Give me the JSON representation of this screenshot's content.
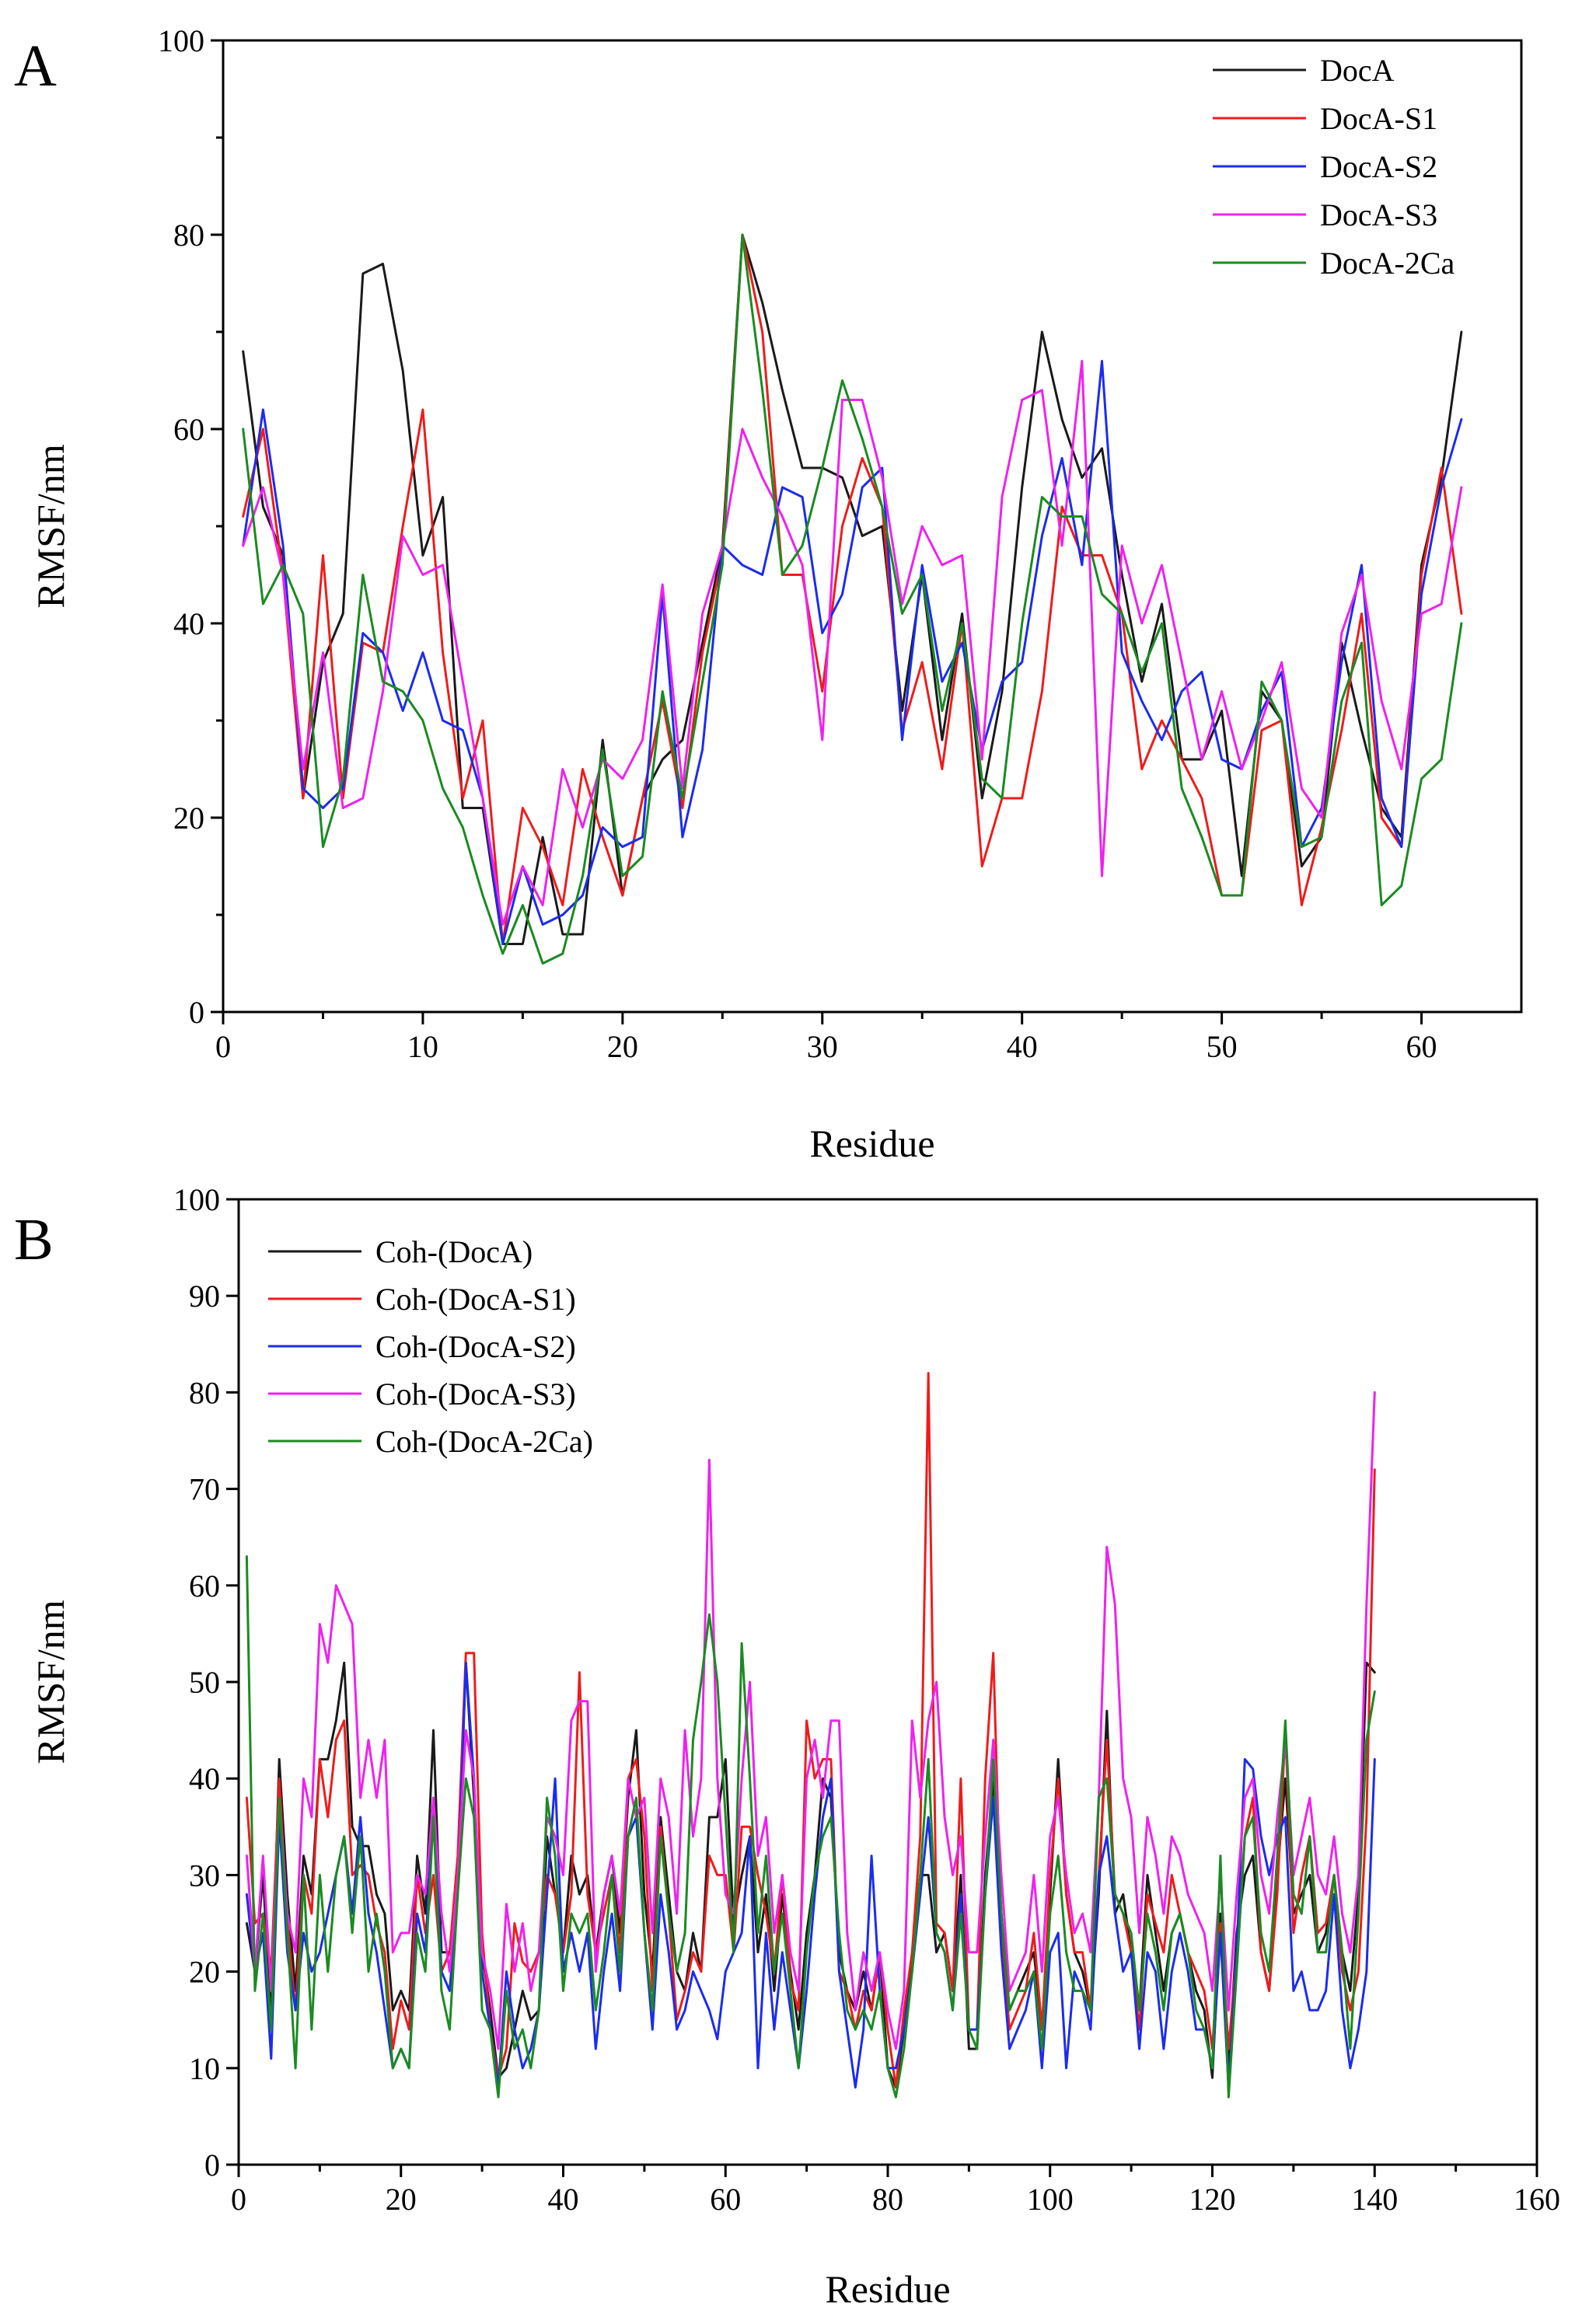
{
  "chart_data": [
    {
      "type": "line",
      "panel_label": "A",
      "xlabel": "Residue",
      "ylabel": "RMSF/nm",
      "xlim": [
        0,
        65
      ],
      "ylim": [
        0,
        100
      ],
      "xticks": [
        0,
        10,
        20,
        30,
        40,
        50,
        60
      ],
      "yticks": [
        0,
        20,
        40,
        60,
        80,
        100
      ],
      "legend_position": "top-right",
      "x": [
        1,
        2,
        3,
        4,
        5,
        6,
        7,
        8,
        9,
        10,
        11,
        12,
        13,
        14,
        15,
        16,
        17,
        18,
        19,
        20,
        21,
        22,
        23,
        24,
        25,
        26,
        27,
        28,
        29,
        30,
        31,
        32,
        33,
        34,
        35,
        36,
        37,
        38,
        39,
        40,
        41,
        42,
        43,
        44,
        45,
        46,
        47,
        48,
        49,
        50,
        51,
        52,
        53,
        54,
        55,
        56,
        57,
        58,
        59,
        60,
        61,
        62
      ],
      "series": [
        {
          "name": "DocA",
          "color": "#1a1a1a",
          "values": [
            68,
            52,
            47,
            22,
            36,
            41,
            76,
            77,
            66,
            47,
            53,
            21,
            21,
            7,
            7,
            18,
            8,
            8,
            28,
            12,
            22,
            26,
            28,
            38,
            48,
            80,
            73,
            64,
            56,
            56,
            55,
            49,
            50,
            31,
            45,
            28,
            41,
            22,
            33,
            54,
            70,
            61,
            55,
            58,
            45,
            34,
            42,
            26,
            26,
            31,
            14,
            33,
            30,
            15,
            18,
            38,
            29,
            21,
            18,
            46,
            55,
            70
          ]
        },
        {
          "name": "DocA-S1",
          "color": "#ee1c1c",
          "values": [
            51,
            60,
            45,
            22,
            47,
            22,
            38,
            37,
            50,
            62,
            37,
            22,
            30,
            7,
            21,
            17,
            11,
            25,
            18,
            12,
            22,
            32,
            21,
            37,
            47,
            80,
            70,
            45,
            45,
            33,
            50,
            57,
            52,
            29,
            36,
            25,
            40,
            15,
            22,
            22,
            33,
            52,
            47,
            47,
            41,
            25,
            30,
            26,
            22,
            12,
            12,
            29,
            30,
            11,
            19,
            29,
            41,
            20,
            17,
            45,
            56,
            41
          ]
        },
        {
          "name": "DocA-S2",
          "color": "#1c2cee",
          "values": [
            48,
            62,
            48,
            23,
            21,
            23,
            39,
            37,
            31,
            37,
            30,
            29,
            22,
            7,
            15,
            9,
            10,
            12,
            19,
            17,
            18,
            43,
            18,
            27,
            48,
            46,
            45,
            54,
            53,
            39,
            43,
            54,
            56,
            28,
            46,
            34,
            38,
            27,
            34,
            36,
            49,
            57,
            46,
            67,
            37,
            32,
            28,
            33,
            35,
            26,
            25,
            31,
            35,
            17,
            21,
            36,
            46,
            22,
            17,
            43,
            54,
            61
          ]
        },
        {
          "name": "DocA-S3",
          "color": "#ee22ee",
          "values": [
            48,
            54,
            45,
            25,
            37,
            21,
            22,
            33,
            49,
            45,
            46,
            34,
            22,
            9,
            15,
            11,
            25,
            19,
            26,
            24,
            28,
            44,
            23,
            41,
            48,
            60,
            55,
            51,
            46,
            28,
            63,
            63,
            55,
            42,
            50,
            46,
            47,
            26,
            53,
            63,
            64,
            48,
            67,
            14,
            48,
            40,
            46,
            36,
            26,
            33,
            25,
            30,
            36,
            23,
            20,
            39,
            45,
            32,
            25,
            41,
            42,
            54
          ]
        },
        {
          "name": "DocA-2Ca",
          "color": "#1b8a22",
          "values": [
            60,
            42,
            46,
            41,
            17,
            24,
            45,
            34,
            33,
            30,
            23,
            19,
            12,
            6,
            11,
            5,
            6,
            14,
            27,
            14,
            16,
            33,
            22,
            34,
            46,
            80,
            64,
            45,
            48,
            56,
            65,
            59,
            52,
            41,
            45,
            31,
            40,
            24,
            22,
            40,
            53,
            51,
            51,
            43,
            41,
            35,
            40,
            23,
            18,
            12,
            12,
            34,
            30,
            17,
            18,
            32,
            38,
            11,
            13,
            24,
            26,
            40
          ]
        }
      ]
    },
    {
      "type": "line",
      "panel_label": "B",
      "xlabel": "Residue",
      "ylabel": "RMSF/nm",
      "xlim": [
        0,
        160
      ],
      "ylim": [
        0,
        100
      ],
      "xticks": [
        0,
        20,
        40,
        60,
        80,
        100,
        120,
        140,
        160
      ],
      "yticks": [
        0,
        10,
        20,
        30,
        40,
        50,
        60,
        70,
        80,
        90,
        100
      ],
      "legend_position": "top-left",
      "x_start": 1,
      "series": [
        {
          "name": "Coh-(DocA)",
          "color": "#1a1a1a",
          "values": [
            25,
            20,
            30,
            15,
            42,
            28,
            18,
            32,
            28,
            42,
            42,
            46,
            52,
            35,
            33,
            33,
            28,
            26,
            16,
            18,
            16,
            32,
            26,
            45,
            22,
            22,
            30,
            52,
            38,
            22,
            16,
            9,
            10,
            14,
            18,
            15,
            16,
            34,
            28,
            22,
            32,
            28,
            30,
            22,
            28,
            32,
            24,
            38,
            45,
            28,
            20,
            36,
            28,
            20,
            18,
            24,
            20,
            36,
            36,
            42,
            25,
            30,
            34,
            22,
            28,
            18,
            28,
            20,
            14,
            24,
            30,
            40,
            38,
            22,
            18,
            16,
            20,
            16,
            22,
            10,
            8,
            14,
            22,
            30,
            30,
            22,
            24,
            18,
            30,
            12,
            12,
            30,
            40,
            26,
            16,
            18,
            20,
            22,
            14,
            28,
            42,
            28,
            22,
            20,
            16,
            28,
            47,
            26,
            28,
            22,
            16,
            30,
            24,
            18,
            24,
            26,
            22,
            18,
            16,
            9,
            26,
            10,
            24,
            30,
            32,
            22,
            18,
            30,
            40,
            26,
            28,
            30,
            22,
            24,
            30,
            22,
            18,
            28,
            52,
            51
          ]
        },
        {
          "name": "Coh-(DocA-S1)",
          "color": "#ee1c1c",
          "values": [
            38,
            25,
            26,
            20,
            40,
            25,
            16,
            30,
            26,
            42,
            36,
            44,
            46,
            30,
            31,
            30,
            25,
            22,
            12,
            17,
            14,
            30,
            24,
            30,
            20,
            22,
            32,
            53,
            53,
            24,
            14,
            9,
            12,
            25,
            21,
            20,
            22,
            30,
            28,
            22,
            28,
            51,
            28,
            22,
            26,
            30,
            22,
            40,
            42,
            34,
            18,
            35,
            26,
            15,
            18,
            22,
            20,
            32,
            30,
            30,
            22,
            35,
            35,
            30,
            26,
            20,
            30,
            19,
            16,
            46,
            40,
            42,
            42,
            20,
            18,
            14,
            18,
            16,
            22,
            14,
            8,
            16,
            22,
            34,
            82,
            25,
            24,
            18,
            40,
            14,
            14,
            40,
            53,
            24,
            14,
            16,
            18,
            24,
            14,
            30,
            40,
            28,
            22,
            22,
            16,
            30,
            44,
            28,
            26,
            22,
            14,
            28,
            25,
            22,
            30,
            26,
            22,
            20,
            18,
            12,
            25,
            12,
            22,
            34,
            38,
            22,
            18,
            28,
            45,
            24,
            30,
            34,
            24,
            25,
            30,
            20,
            16,
            20,
            36,
            72
          ]
        },
        {
          "name": "Coh-(DocA-S2)",
          "color": "#1c2cee",
          "values": [
            28,
            20,
            24,
            11,
            36,
            22,
            16,
            24,
            20,
            22,
            26,
            30,
            34,
            26,
            36,
            26,
            22,
            16,
            10,
            12,
            10,
            26,
            22,
            38,
            20,
            18,
            28,
            52,
            40,
            20,
            14,
            8,
            20,
            14,
            10,
            12,
            16,
            28,
            40,
            20,
            24,
            20,
            24,
            12,
            20,
            26,
            18,
            34,
            36,
            24,
            14,
            28,
            22,
            14,
            16,
            20,
            18,
            16,
            13,
            20,
            22,
            24,
            34,
            10,
            24,
            14,
            22,
            16,
            10,
            18,
            28,
            36,
            40,
            20,
            14,
            8,
            14,
            32,
            18,
            10,
            10,
            14,
            20,
            28,
            36,
            24,
            22,
            16,
            28,
            14,
            14,
            28,
            38,
            22,
            12,
            14,
            16,
            20,
            10,
            22,
            24,
            10,
            20,
            18,
            14,
            30,
            34,
            26,
            20,
            22,
            12,
            22,
            20,
            12,
            20,
            24,
            20,
            14,
            14,
            10,
            24,
            8,
            22,
            42,
            41,
            34,
            30,
            34,
            36,
            18,
            20,
            16,
            16,
            18,
            28,
            16,
            10,
            14,
            20,
            42
          ]
        },
        {
          "name": "Coh-(DocA-S3)",
          "color": "#ee22ee",
          "values": [
            32,
            20,
            32,
            18,
            38,
            26,
            22,
            40,
            36,
            56,
            52,
            60,
            58,
            56,
            38,
            44,
            38,
            44,
            22,
            24,
            24,
            30,
            28,
            38,
            26,
            20,
            30,
            45,
            40,
            22,
            18,
            12,
            27,
            20,
            25,
            18,
            22,
            36,
            34,
            30,
            46,
            48,
            48,
            20,
            28,
            32,
            26,
            40,
            36,
            38,
            24,
            40,
            36,
            26,
            45,
            34,
            40,
            73,
            40,
            28,
            26,
            40,
            50,
            32,
            36,
            24,
            30,
            22,
            18,
            40,
            44,
            38,
            46,
            46,
            24,
            16,
            22,
            18,
            22,
            16,
            12,
            18,
            46,
            38,
            46,
            50,
            36,
            30,
            34,
            22,
            22,
            34,
            44,
            30,
            18,
            20,
            22,
            30,
            20,
            34,
            38,
            30,
            24,
            26,
            22,
            38,
            64,
            58,
            40,
            36,
            24,
            36,
            32,
            26,
            34,
            32,
            28,
            26,
            24,
            18,
            30,
            16,
            28,
            38,
            40,
            30,
            26,
            36,
            44,
            30,
            34,
            38,
            30,
            28,
            34,
            26,
            22,
            30,
            58,
            80
          ]
        },
        {
          "name": "Coh-(DocA-2Ca)",
          "color": "#1b8a22",
          "values": [
            63,
            18,
            26,
            14,
            38,
            24,
            10,
            30,
            14,
            30,
            20,
            30,
            34,
            24,
            34,
            20,
            26,
            20,
            10,
            12,
            10,
            24,
            20,
            36,
            18,
            14,
            28,
            40,
            36,
            16,
            14,
            7,
            18,
            12,
            14,
            10,
            16,
            38,
            32,
            18,
            26,
            24,
            26,
            16,
            22,
            30,
            20,
            34,
            38,
            24,
            16,
            34,
            26,
            20,
            24,
            44,
            50,
            57,
            50,
            36,
            22,
            54,
            40,
            24,
            32,
            20,
            26,
            18,
            10,
            22,
            30,
            34,
            36,
            24,
            16,
            14,
            16,
            14,
            18,
            10,
            7,
            12,
            20,
            30,
            42,
            24,
            22,
            16,
            26,
            14,
            12,
            28,
            42,
            26,
            16,
            18,
            18,
            20,
            12,
            26,
            32,
            22,
            18,
            18,
            16,
            38,
            40,
            28,
            26,
            24,
            16,
            26,
            22,
            16,
            24,
            26,
            22,
            16,
            14,
            10,
            32,
            7,
            20,
            34,
            36,
            24,
            20,
            32,
            46,
            28,
            26,
            34,
            22,
            22,
            30,
            22,
            12,
            26,
            44,
            49
          ]
        }
      ]
    }
  ]
}
